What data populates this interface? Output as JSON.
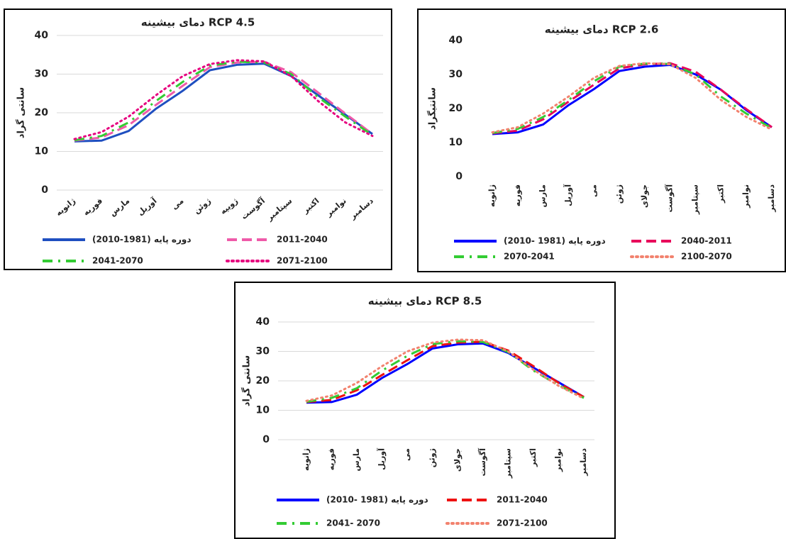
{
  "chart_data": [
    {
      "type": "line",
      "title": "دمای بیشینه RCP 4.5",
      "y_label": "سانتی گراد",
      "categories": [
        "ژانویه",
        "فوریه",
        "مارس",
        "آوریل",
        "می",
        "ژوئن",
        "ژوییه",
        "آگوست",
        "سپتامبر",
        "اکتبر",
        "نوامبر",
        "دسامبر"
      ],
      "series": [
        {
          "name": "دوره پایه (1981-2010)",
          "color": "#1f4fc0",
          "dash": "solid",
          "values": [
            12.6,
            12.8,
            15.3,
            21,
            25.7,
            31,
            32.4,
            32.7,
            29.5,
            24.5,
            19.5,
            14.5
          ]
        },
        {
          "name": "2011-2040",
          "color": "#ef5aa9",
          "dash": "dashed",
          "values": [
            12.8,
            13.6,
            16.8,
            22,
            27,
            31.8,
            33,
            33.2,
            30.5,
            25.2,
            19.8,
            14.5
          ]
        },
        {
          "name": "2041-2070",
          "color": "#33cc33",
          "dash": "dash-dot",
          "values": [
            12.9,
            14,
            17.5,
            23,
            28,
            32.2,
            33.2,
            33,
            30,
            24,
            19,
            14.2
          ]
        },
        {
          "name": "2071-2100",
          "color": "#e6007e",
          "dash": "dotted",
          "values": [
            13.2,
            15,
            19,
            24.5,
            29.5,
            32.6,
            33.6,
            33.3,
            29.5,
            23,
            17.5,
            14
          ]
        }
      ],
      "ylim": [
        0,
        40
      ],
      "yticks": [
        0,
        10,
        20,
        30,
        40
      ],
      "grid": true
    },
    {
      "type": "line",
      "title": "دمای بیشینه RCP 2.6",
      "y_label": "سانتیگراد",
      "categories": [
        "ژانویه",
        "فوریه",
        "مارس",
        "آوریل",
        "می",
        "ژوئن",
        "جولای",
        "آگوست",
        "سپتامبر",
        "اکتبر",
        "نوامبر",
        "دسامبر"
      ],
      "series": [
        {
          "name": "دوره پایه (1981 -2010)",
          "color": "#0000ff",
          "dash": "solid",
          "values": [
            12.5,
            13,
            15.3,
            21,
            25.7,
            31,
            32.3,
            32.8,
            30,
            25.5,
            19.5,
            14.5
          ]
        },
        {
          "name": "2040-2011",
          "color": "#e8005a",
          "dash": "dashed",
          "values": [
            12.7,
            13.5,
            16.8,
            22,
            27,
            31.8,
            33,
            33.3,
            30.8,
            25.5,
            19.8,
            14.5
          ]
        },
        {
          "name": "2070-2041",
          "color": "#33cc33",
          "dash": "dash-dot",
          "values": [
            12.8,
            14,
            17.5,
            22.5,
            28,
            32.3,
            33.2,
            33.1,
            30,
            23.5,
            18.5,
            14.2
          ]
        },
        {
          "name": "2100-2070",
          "color": "#f2826e",
          "dash": "dotted",
          "values": [
            13,
            14.5,
            18.5,
            23.5,
            29,
            32.5,
            33.3,
            33,
            29,
            22.5,
            17.5,
            13.8
          ]
        }
      ],
      "ylim": [
        0,
        40
      ],
      "yticks": [
        0,
        10,
        20,
        30,
        40
      ],
      "grid": false
    },
    {
      "type": "line",
      "title": "دمای بیشینه RCP 8.5",
      "y_label": "سانتی گراد",
      "categories": [
        "ژانویه",
        "فوریه",
        "مارس",
        "آوریل",
        "می",
        "ژوئن",
        "جولای",
        "آگوست",
        "سپتامبر",
        "اکتبر",
        "نوامبر",
        "دسامبر"
      ],
      "series": [
        {
          "name": "دوره پایه (1981 -2010)",
          "color": "#0000ff",
          "dash": "solid",
          "values": [
            12.6,
            12.8,
            15.3,
            21,
            25.7,
            31,
            32.4,
            32.7,
            29.5,
            24.5,
            19.5,
            14.5
          ]
        },
        {
          "name": "2011-2040",
          "color": "#ee1111",
          "dash": "dashed",
          "values": [
            12.8,
            13.5,
            16.8,
            22,
            27,
            31.8,
            33,
            33.3,
            30.3,
            25,
            19.3,
            14.5
          ]
        },
        {
          "name": "2041- 2070",
          "color": "#33cc33",
          "dash": "dash-dot",
          "values": [
            12.9,
            14.2,
            17.5,
            23.5,
            28.5,
            32.5,
            33.5,
            33.2,
            29.8,
            23.5,
            18.5,
            14.2
          ]
        },
        {
          "name": "2071-2100",
          "color": "#f2826e",
          "dash": "dotted",
          "values": [
            13.2,
            15,
            19.3,
            25,
            30,
            33,
            34,
            33.8,
            30,
            23.8,
            18.3,
            14
          ]
        }
      ],
      "ylim": [
        0,
        40
      ],
      "yticks": [
        0,
        10,
        20,
        30,
        40
      ],
      "grid": true
    }
  ]
}
